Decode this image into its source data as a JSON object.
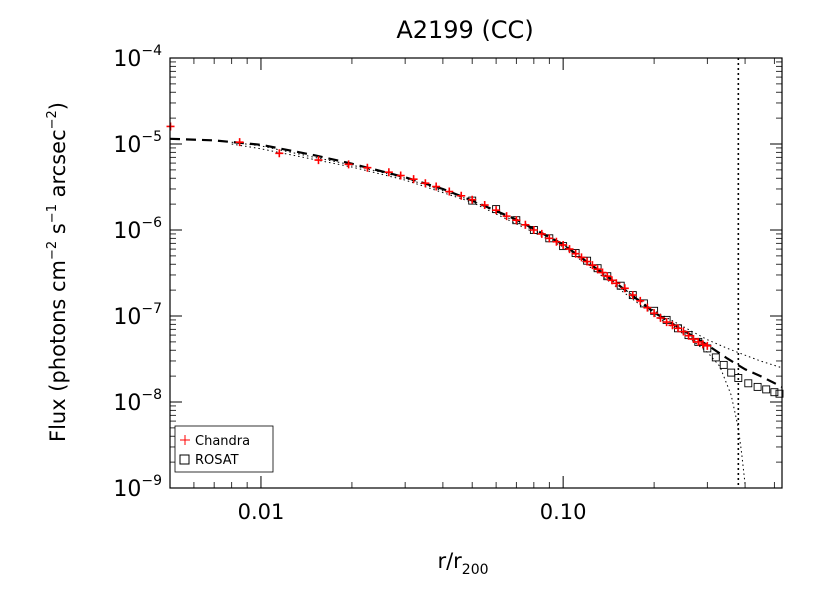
{
  "chart_data": {
    "type": "scatter",
    "title": "A2199 (CC)",
    "xlabel": {
      "base": "r/r",
      "sub": "200"
    },
    "ylabel": {
      "before": "Flux (photons cm",
      "exp1": "−2",
      "mid1": " s",
      "exp2": "−1",
      "mid2": " arcsec",
      "exp3": "−2",
      "after": ")"
    },
    "x_scale": "log",
    "y_scale": "log",
    "xlim": [
      0.005,
      0.53
    ],
    "ylim": [
      1e-09,
      0.0001
    ],
    "x_ticks": [
      {
        "value": 0.01,
        "label": "0.01"
      },
      {
        "value": 0.1,
        "label": "0.10"
      }
    ],
    "y_ticks": [
      {
        "value": 1e-09,
        "exp": "−9"
      },
      {
        "value": 1e-08,
        "exp": "−8"
      },
      {
        "value": 1e-07,
        "exp": "−7"
      },
      {
        "value": 1e-06,
        "exp": "−6"
      },
      {
        "value": 1e-05,
        "exp": "−5"
      },
      {
        "value": 0.0001,
        "exp": "−4"
      }
    ],
    "y_tick_base": "10",
    "vline_x": 0.38,
    "series": [
      {
        "name": "Chandra",
        "marker": "plus",
        "color": "#ff0000",
        "points": [
          [
            0.00502,
            1.6e-05
          ],
          [
            0.0085,
            1.05e-05
          ],
          [
            0.0115,
            7.8e-06
          ],
          [
            0.0155,
            6.5e-06
          ],
          [
            0.0195,
            5.8e-06
          ],
          [
            0.0225,
            5.3e-06
          ],
          [
            0.0265,
            4.7e-06
          ],
          [
            0.029,
            4.3e-06
          ],
          [
            0.032,
            3.9e-06
          ],
          [
            0.035,
            3.5e-06
          ],
          [
            0.038,
            3.2e-06
          ],
          [
            0.042,
            2.8e-06
          ],
          [
            0.046,
            2.5e-06
          ],
          [
            0.05,
            2.25e-06
          ],
          [
            0.055,
            1.95e-06
          ],
          [
            0.06,
            1.7e-06
          ],
          [
            0.065,
            1.45e-06
          ],
          [
            0.07,
            1.3e-06
          ],
          [
            0.075,
            1.15e-06
          ],
          [
            0.08,
            1e-06
          ],
          [
            0.085,
            9e-07
          ],
          [
            0.09,
            8e-07
          ],
          [
            0.095,
            7.3e-07
          ],
          [
            0.1,
            6.7e-07
          ],
          [
            0.105,
            6e-07
          ],
          [
            0.11,
            5.3e-07
          ],
          [
            0.115,
            4.8e-07
          ],
          [
            0.12,
            4.3e-07
          ],
          [
            0.125,
            3.9e-07
          ],
          [
            0.13,
            3.5e-07
          ],
          [
            0.135,
            3.2e-07
          ],
          [
            0.14,
            2.9e-07
          ],
          [
            0.145,
            2.6e-07
          ],
          [
            0.15,
            2.4e-07
          ],
          [
            0.16,
            2.1e-07
          ],
          [
            0.17,
            1.75e-07
          ],
          [
            0.18,
            1.5e-07
          ],
          [
            0.19,
            1.25e-07
          ],
          [
            0.2,
            1.08e-07
          ],
          [
            0.21,
            9.5e-08
          ],
          [
            0.22,
            8.5e-08
          ],
          [
            0.23,
            7.8e-08
          ],
          [
            0.24,
            7.2e-08
          ],
          [
            0.25,
            6.6e-08
          ],
          [
            0.26,
            5.9e-08
          ],
          [
            0.27,
            5.4e-08
          ],
          [
            0.28,
            5e-08
          ],
          [
            0.29,
            4.7e-08
          ],
          [
            0.3,
            4.5e-08
          ]
        ]
      },
      {
        "name": "ROSAT",
        "marker": "square",
        "color": "#000000",
        "points": [
          [
            0.05,
            2.2e-06
          ],
          [
            0.06,
            1.75e-06
          ],
          [
            0.07,
            1.3e-06
          ],
          [
            0.08,
            1e-06
          ],
          [
            0.09,
            8e-07
          ],
          [
            0.1,
            6.5e-07
          ],
          [
            0.11,
            5.4e-07
          ],
          [
            0.12,
            4.4e-07
          ],
          [
            0.13,
            3.6e-07
          ],
          [
            0.14,
            2.9e-07
          ],
          [
            0.155,
            2.25e-07
          ],
          [
            0.17,
            1.75e-07
          ],
          [
            0.185,
            1.4e-07
          ],
          [
            0.2,
            1.15e-07
          ],
          [
            0.22,
            9e-08
          ],
          [
            0.24,
            7.2e-08
          ],
          [
            0.26,
            6e-08
          ],
          [
            0.28,
            5e-08
          ],
          [
            0.3,
            4.2e-08
          ],
          [
            0.32,
            3.3e-08
          ],
          [
            0.34,
            2.7e-08
          ],
          [
            0.36,
            2.2e-08
          ],
          [
            0.38,
            1.9e-08
          ],
          [
            0.41,
            1.65e-08
          ],
          [
            0.44,
            1.5e-08
          ],
          [
            0.47,
            1.4e-08
          ],
          [
            0.5,
            1.3e-08
          ],
          [
            0.52,
            1.25e-08
          ]
        ]
      }
    ],
    "model": {
      "style": "dashed",
      "points": [
        [
          0.005,
          1.15e-05
        ],
        [
          0.007,
          1.1e-05
        ],
        [
          0.01,
          9.8e-06
        ],
        [
          0.015,
          7.4e-06
        ],
        [
          0.02,
          5.9e-06
        ],
        [
          0.03,
          4.1e-06
        ],
        [
          0.04,
          3e-06
        ],
        [
          0.05,
          2.2e-06
        ],
        [
          0.07,
          1.32e-06
        ],
        [
          0.1,
          6.8e-07
        ],
        [
          0.15,
          2.4e-07
        ],
        [
          0.2,
          1.1e-07
        ],
        [
          0.25,
          6.8e-08
        ],
        [
          0.3,
          4.6e-08
        ],
        [
          0.35,
          3.2e-08
        ],
        [
          0.4,
          2.4e-08
        ],
        [
          0.45,
          2e-08
        ],
        [
          0.53,
          1.5e-08
        ]
      ]
    },
    "upper_bound": {
      "style": "dotted",
      "points": [
        [
          0.008,
          1.05e-05
        ],
        [
          0.01,
          9.5e-06
        ],
        [
          0.015,
          7e-06
        ],
        [
          0.02,
          5.7e-06
        ],
        [
          0.03,
          4e-06
        ],
        [
          0.05,
          2.2e-06
        ],
        [
          0.1,
          6.8e-07
        ],
        [
          0.2,
          1.15e-07
        ],
        [
          0.25,
          7.5e-08
        ],
        [
          0.3,
          5.3e-08
        ],
        [
          0.35,
          4.2e-08
        ],
        [
          0.4,
          3.5e-08
        ],
        [
          0.45,
          3e-08
        ],
        [
          0.53,
          2.5e-08
        ]
      ]
    },
    "lower_bound": {
      "style": "dotted",
      "points": [
        [
          0.008,
          1e-05
        ],
        [
          0.01,
          8.8e-06
        ],
        [
          0.015,
          6.6e-06
        ],
        [
          0.02,
          5.4e-06
        ],
        [
          0.03,
          3.8e-06
        ],
        [
          0.05,
          2.1e-06
        ],
        [
          0.1,
          6.4e-07
        ],
        [
          0.2,
          1.02e-07
        ],
        [
          0.25,
          6.2e-08
        ],
        [
          0.3,
          3.8e-08
        ],
        [
          0.33,
          2.6e-08
        ],
        [
          0.36,
          1.2e-08
        ],
        [
          0.38,
          5e-09
        ],
        [
          0.39,
          2.5e-09
        ],
        [
          0.4,
          1.1e-09
        ]
      ]
    },
    "legend": {
      "position": "bottom-left",
      "entries": [
        "Chandra",
        "ROSAT"
      ]
    }
  }
}
